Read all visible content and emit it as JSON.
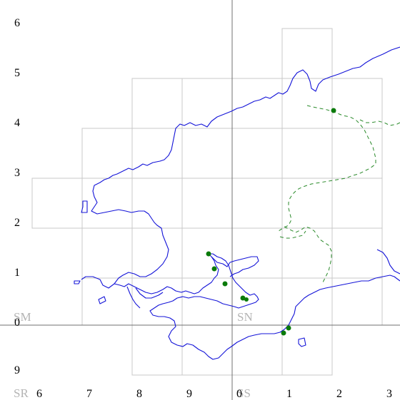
{
  "map": {
    "colors": {
      "coastline": "#1414d8",
      "county_boundary": "#2a8a2a",
      "points": "#0a7a0a",
      "grid_lines": "#c8c8c8",
      "main_grid_lines": "#707070",
      "square_label": "#b4b4b4",
      "axis_label": "#000000",
      "background": "#ffffff"
    },
    "grid_squares": [
      "SM",
      "SN",
      "SR",
      "SS"
    ],
    "eastings": [
      "6",
      "7",
      "8",
      "9",
      "0",
      "1",
      "2",
      "3"
    ],
    "northings": [
      "6",
      "5",
      "4",
      "3",
      "2",
      "1",
      "0",
      "9"
    ],
    "record_count": 8
  }
}
